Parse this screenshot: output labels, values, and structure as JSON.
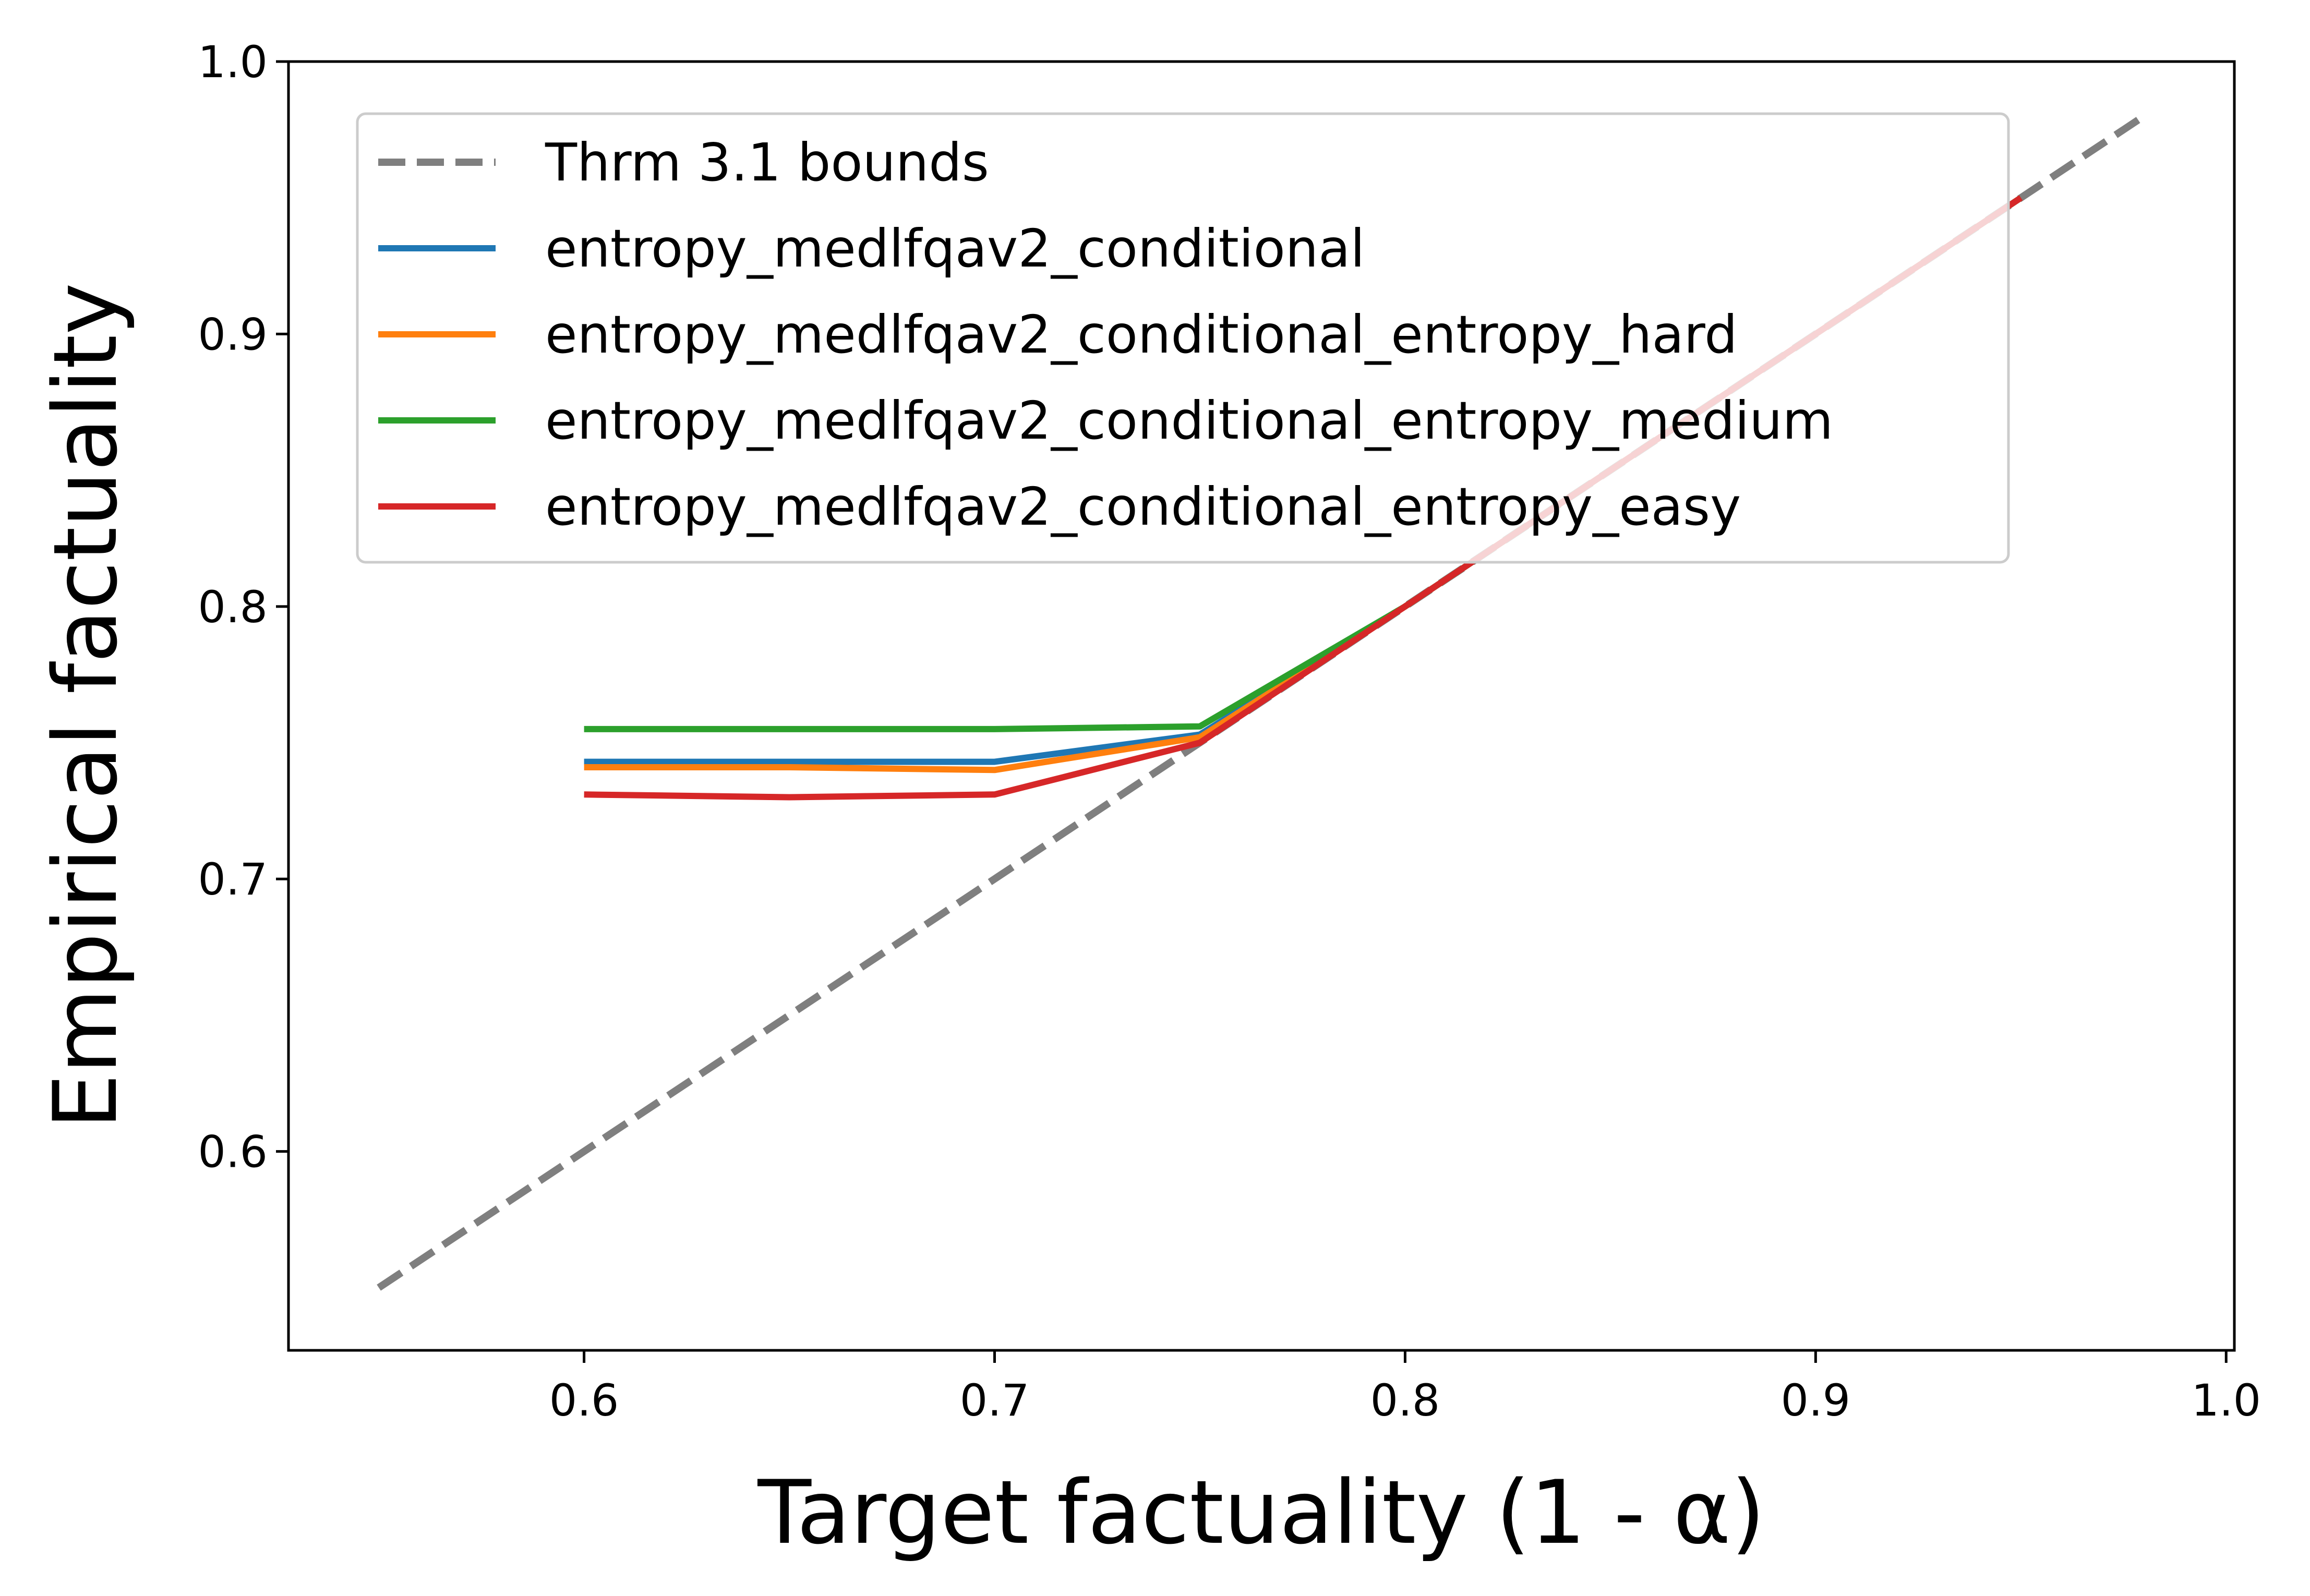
{
  "chart_data": {
    "type": "line",
    "title": "",
    "xlabel": "Target factuality (1 - α)",
    "ylabel": "Empirical factuality",
    "xlim": [
      0.528,
      1.002
    ],
    "ylim": [
      0.527,
      1.0
    ],
    "xticks": [
      0.6,
      0.7,
      0.8,
      0.9,
      1.0
    ],
    "xtick_labels": [
      "0.6",
      "0.7",
      "0.8",
      "0.9",
      "1.0"
    ],
    "yticks": [
      0.6,
      0.7,
      0.8,
      0.9,
      1.0
    ],
    "ytick_labels": [
      "0.6",
      "0.7",
      "0.8",
      "0.9",
      "1.0"
    ],
    "grid": false,
    "legend_position": "top-left",
    "series": [
      {
        "name": "Thrm 3.1 bounds",
        "color": "#7f7f7f",
        "style": "dashed",
        "x": [
          0.55,
          0.98
        ],
        "y": [
          0.55,
          0.98
        ]
      },
      {
        "name": "entropy_medlfqav2_conditional",
        "color": "#1f77b4",
        "style": "solid",
        "x": [
          0.6,
          0.65,
          0.7,
          0.75,
          0.8,
          0.85,
          0.9,
          0.95
        ],
        "y": [
          0.743,
          0.743,
          0.743,
          0.753,
          0.8,
          0.85,
          0.9,
          0.95
        ]
      },
      {
        "name": "entropy_medlfqav2_conditional_entropy_hard",
        "color": "#ff7f0e",
        "style": "solid",
        "x": [
          0.6,
          0.65,
          0.7,
          0.75,
          0.8,
          0.85,
          0.9,
          0.95
        ],
        "y": [
          0.741,
          0.741,
          0.74,
          0.752,
          0.8,
          0.85,
          0.9,
          0.95
        ]
      },
      {
        "name": "entropy_medlfqav2_conditional_entropy_medium",
        "color": "#2ca02c",
        "style": "solid",
        "x": [
          0.6,
          0.65,
          0.7,
          0.75,
          0.8,
          0.85,
          0.9,
          0.95
        ],
        "y": [
          0.755,
          0.755,
          0.755,
          0.756,
          0.8,
          0.85,
          0.9,
          0.95
        ]
      },
      {
        "name": "entropy_medlfqav2_conditional_entropy_easy",
        "color": "#d62728",
        "style": "solid",
        "x": [
          0.6,
          0.65,
          0.7,
          0.75,
          0.8,
          0.85,
          0.9,
          0.95
        ],
        "y": [
          0.731,
          0.73,
          0.731,
          0.75,
          0.8,
          0.85,
          0.9,
          0.95
        ]
      }
    ]
  }
}
